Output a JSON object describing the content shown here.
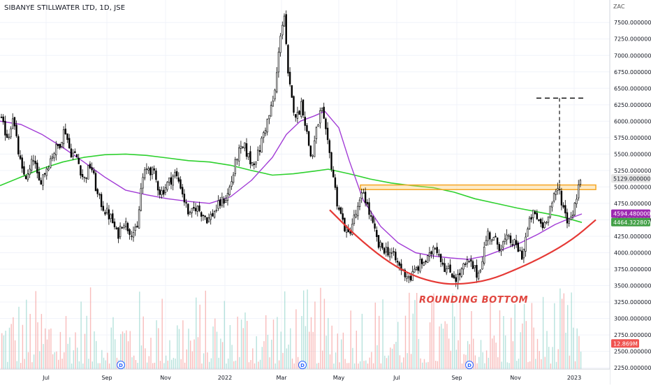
{
  "chart_data": {
    "type": "candlestick",
    "title": "SIBANYE STILLWATER LTD, 1D, JSE",
    "currency": "ZAC",
    "annotation": "ROUNDING BOTTOM",
    "ylim": [
      2230,
      7800
    ],
    "y_ticks": [
      2250,
      2500,
      2750,
      3000,
      3250,
      3500,
      3750,
      4000,
      4250,
      4500,
      4750,
      5000,
      5250,
      5500,
      5750,
      6000,
      6250,
      6500,
      6750,
      7000,
      7250,
      7500
    ],
    "x_ticks": [
      "Jul",
      "Sep",
      "Nov",
      "2022",
      "Mar",
      "May",
      "Jul",
      "Sep",
      "Nov",
      "2023"
    ],
    "price_markers": [
      {
        "label": "5129.0000000",
        "value": 5129,
        "color": "#e6e6e6",
        "text_color": "#131722"
      },
      {
        "label": "4594.4800000",
        "value": 4594.48,
        "color": "#9c27b0",
        "text_color": "#ffffff"
      },
      {
        "label": "4464.3228076",
        "value": 4464.32,
        "color": "#43a047",
        "text_color": "#ffffff"
      },
      {
        "label": "12.869M",
        "value": 2620,
        "color": "#ef5350",
        "text_color": "#ffffff"
      }
    ],
    "price_anchors": [
      [
        0,
        6050
      ],
      [
        5,
        5900
      ],
      [
        12,
        5750
      ],
      [
        18,
        6100
      ],
      [
        25,
        5600
      ],
      [
        32,
        5200
      ],
      [
        40,
        5150
      ],
      [
        48,
        5450
      ],
      [
        55,
        5050
      ],
      [
        65,
        5250
      ],
      [
        75,
        5500
      ],
      [
        85,
        5650
      ],
      [
        93,
        5900
      ],
      [
        100,
        5550
      ],
      [
        110,
        5450
      ],
      [
        120,
        5100
      ],
      [
        130,
        5350
      ],
      [
        140,
        4850
      ],
      [
        150,
        4650
      ],
      [
        160,
        4500
      ],
      [
        168,
        4250
      ],
      [
        176,
        4500
      ],
      [
        185,
        4350
      ],
      [
        196,
        4300
      ],
      [
        203,
        5100
      ],
      [
        212,
        5300
      ],
      [
        220,
        5200
      ],
      [
        230,
        4900
      ],
      [
        240,
        5050
      ],
      [
        250,
        5200
      ],
      [
        258,
        5050
      ],
      [
        265,
        4750
      ],
      [
        272,
        4550
      ],
      [
        280,
        4700
      ],
      [
        290,
        4600
      ],
      [
        298,
        4500
      ],
      [
        305,
        4600
      ],
      [
        315,
        4750
      ],
      [
        325,
        4850
      ],
      [
        333,
        5150
      ],
      [
        340,
        5500
      ],
      [
        350,
        5600
      ],
      [
        360,
        5350
      ],
      [
        370,
        5500
      ],
      [
        378,
        5850
      ],
      [
        386,
        6100
      ],
      [
        393,
        6400
      ],
      [
        398,
        6900
      ],
      [
        402,
        7400
      ],
      [
        407,
        7600
      ],
      [
        412,
        6700
      ],
      [
        418,
        6300
      ],
      [
        425,
        6050
      ],
      [
        432,
        6300
      ],
      [
        438,
        5900
      ],
      [
        446,
        5400
      ],
      [
        452,
        5800
      ],
      [
        460,
        6200
      ],
      [
        468,
        5700
      ],
      [
        476,
        5250
      ],
      [
        482,
        4800
      ],
      [
        490,
        4500
      ],
      [
        498,
        4250
      ],
      [
        506,
        4500
      ],
      [
        514,
        4700
      ],
      [
        520,
        4950
      ],
      [
        526,
        4700
      ],
      [
        534,
        4400
      ],
      [
        542,
        4100
      ],
      [
        552,
        4050
      ],
      [
        560,
        4000
      ],
      [
        568,
        3850
      ],
      [
        578,
        3700
      ],
      [
        588,
        3620
      ],
      [
        596,
        3750
      ],
      [
        604,
        3850
      ],
      [
        614,
        3900
      ],
      [
        622,
        4150
      ],
      [
        630,
        3950
      ],
      [
        638,
        3750
      ],
      [
        646,
        3700
      ],
      [
        654,
        3600
      ],
      [
        662,
        3750
      ],
      [
        670,
        3850
      ],
      [
        676,
        3800
      ],
      [
        684,
        3650
      ],
      [
        690,
        3900
      ],
      [
        698,
        4300
      ],
      [
        706,
        4200
      ],
      [
        716,
        4100
      ],
      [
        726,
        4200
      ],
      [
        734,
        4150
      ],
      [
        742,
        4050
      ],
      [
        748,
        3950
      ],
      [
        754,
        4300
      ],
      [
        762,
        4600
      ],
      [
        770,
        4500
      ],
      [
        778,
        4400
      ],
      [
        786,
        4650
      ],
      [
        794,
        4850
      ],
      [
        800,
        5000
      ],
      [
        806,
        4700
      ],
      [
        812,
        4500
      ],
      [
        818,
        4550
      ],
      [
        824,
        4800
      ],
      [
        830,
        5100
      ],
      [
        835,
        5150
      ]
    ],
    "ma_purple": [
      [
        0,
        6000
      ],
      [
        30,
        5950
      ],
      [
        60,
        5800
      ],
      [
        90,
        5600
      ],
      [
        120,
        5380
      ],
      [
        150,
        5150
      ],
      [
        180,
        4950
      ],
      [
        210,
        4880
      ],
      [
        240,
        4820
      ],
      [
        270,
        4780
      ],
      [
        300,
        4750
      ],
      [
        330,
        4850
      ],
      [
        360,
        5100
      ],
      [
        390,
        5450
      ],
      [
        410,
        5800
      ],
      [
        430,
        6000
      ],
      [
        450,
        6080
      ],
      [
        465,
        6150
      ],
      [
        485,
        5900
      ],
      [
        500,
        5400
      ],
      [
        520,
        4800
      ],
      [
        545,
        4400
      ],
      [
        570,
        4150
      ],
      [
        595,
        4000
      ],
      [
        620,
        3950
      ],
      [
        645,
        3920
      ],
      [
        670,
        3900
      ],
      [
        695,
        3950
      ],
      [
        720,
        4050
      ],
      [
        745,
        4150
      ],
      [
        770,
        4280
      ],
      [
        795,
        4430
      ],
      [
        815,
        4520
      ],
      [
        833,
        4590
      ]
    ],
    "ma_green": [
      [
        0,
        5020
      ],
      [
        30,
        5150
      ],
      [
        60,
        5280
      ],
      [
        90,
        5380
      ],
      [
        120,
        5450
      ],
      [
        150,
        5490
      ],
      [
        180,
        5500
      ],
      [
        210,
        5480
      ],
      [
        240,
        5440
      ],
      [
        270,
        5400
      ],
      [
        300,
        5380
      ],
      [
        330,
        5330
      ],
      [
        360,
        5250
      ],
      [
        390,
        5180
      ],
      [
        420,
        5200
      ],
      [
        450,
        5240
      ],
      [
        470,
        5270
      ],
      [
        500,
        5200
      ],
      [
        530,
        5120
      ],
      [
        560,
        5060
      ],
      [
        590,
        5020
      ],
      [
        620,
        4990
      ],
      [
        650,
        4920
      ],
      [
        680,
        4820
      ],
      [
        710,
        4750
      ],
      [
        740,
        4680
      ],
      [
        770,
        4620
      ],
      [
        800,
        4560
      ],
      [
        833,
        4460
      ]
    ],
    "rounding_bottom_curve": [
      [
        472,
        4650
      ],
      [
        510,
        4250
      ],
      [
        550,
        3900
      ],
      [
        590,
        3650
      ],
      [
        630,
        3530
      ],
      [
        660,
        3520
      ],
      [
        700,
        3580
      ],
      [
        740,
        3750
      ],
      [
        780,
        3950
      ],
      [
        820,
        4200
      ],
      [
        853,
        4500
      ]
    ],
    "resistance_zone": {
      "x_start": 516,
      "x_end": 853,
      "low": 4960,
      "high": 5030
    },
    "target_line": {
      "x_start": 768,
      "x_end": 836,
      "value": 6350,
      "vertical_x": 801,
      "vertical_from": 4980
    },
    "dividend_markers_x": [
      173,
      433,
      672
    ]
  }
}
